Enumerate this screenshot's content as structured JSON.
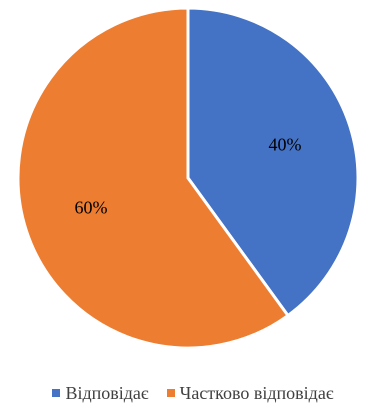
{
  "chart_data": {
    "type": "pie",
    "categories": [
      "Відповідає",
      "Частково відповідає"
    ],
    "values": [
      40,
      60
    ],
    "labels": [
      "40%",
      "60%"
    ],
    "colors": [
      "#4472C4",
      "#ED7D31"
    ],
    "start_angle": "12 o'clock",
    "direction": "clockwise",
    "legend_position": "bottom"
  }
}
